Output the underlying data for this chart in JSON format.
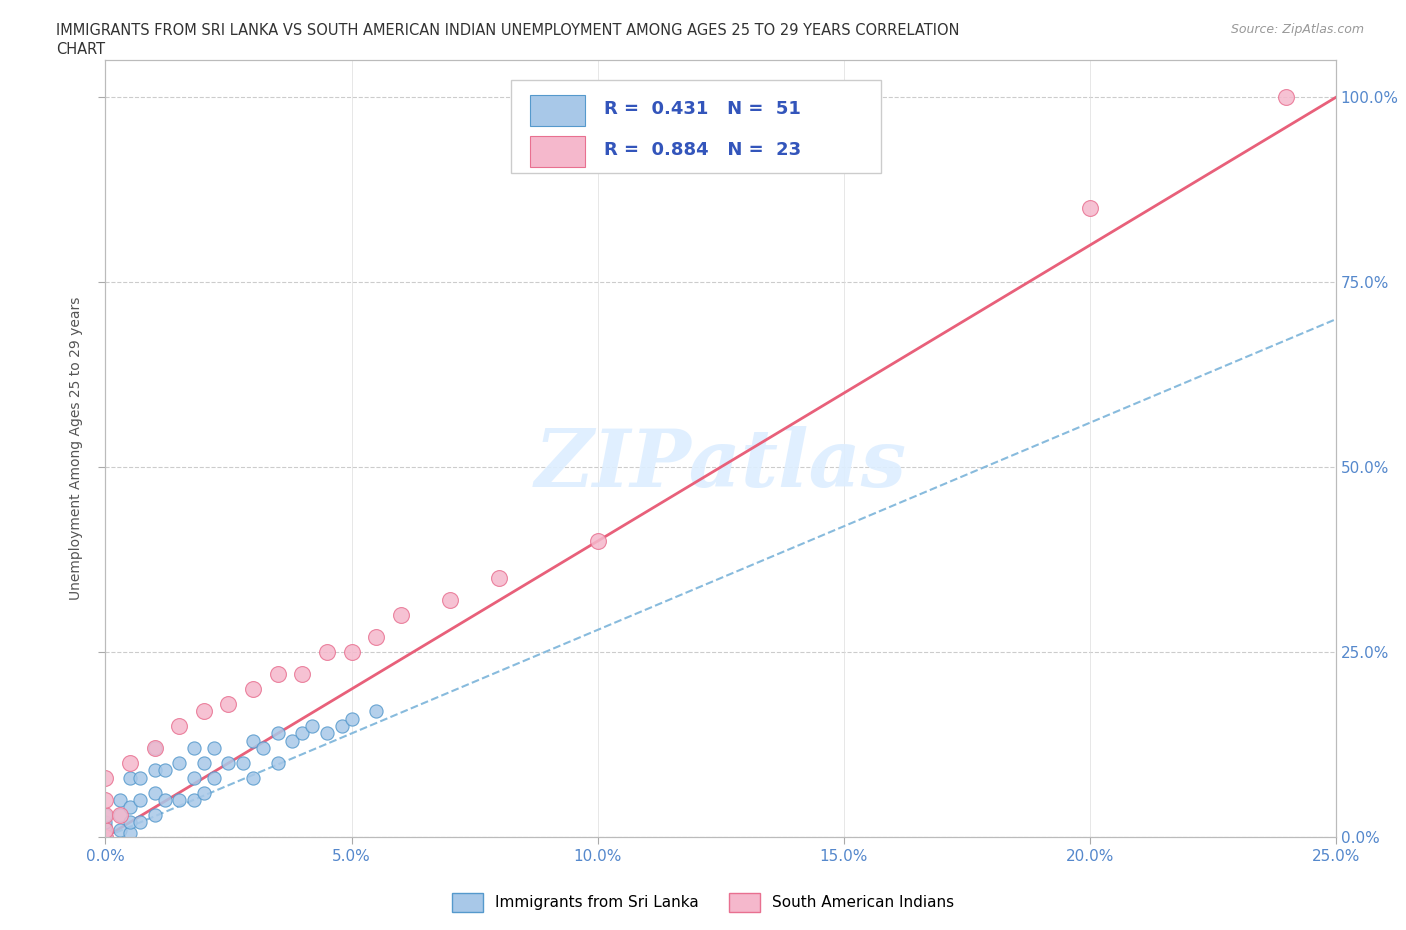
{
  "title_line1": "IMMIGRANTS FROM SRI LANKA VS SOUTH AMERICAN INDIAN UNEMPLOYMENT AMONG AGES 25 TO 29 YEARS CORRELATION",
  "title_line2": "CHART",
  "source_text": "Source: ZipAtlas.com",
  "ylabel": "Unemployment Among Ages 25 to 29 years",
  "x_ticks": [
    "0.0%",
    "5.0%",
    "10.0%",
    "15.0%",
    "20.0%",
    "25.0%"
  ],
  "x_tick_vals": [
    0.0,
    5.0,
    10.0,
    15.0,
    20.0,
    25.0
  ],
  "y_ticks_right": [
    "0.0%",
    "25.0%",
    "50.0%",
    "75.0%",
    "100.0%"
  ],
  "y_tick_vals": [
    0.0,
    25.0,
    50.0,
    75.0,
    100.0
  ],
  "xlim": [
    0.0,
    25.0
  ],
  "ylim": [
    0.0,
    105.0
  ],
  "watermark": "ZIPatlas",
  "sri_lanka_color": "#a8c8e8",
  "sri_lanka_edge": "#5599cc",
  "south_american_color": "#f5b8cc",
  "south_american_edge": "#e87090",
  "trend_sri_lanka_color": "#88bbdd",
  "trend_south_american_color": "#e8607a",
  "sri_lanka_R": 0.431,
  "sri_lanka_N": 51,
  "south_american_R": 0.884,
  "south_american_N": 23,
  "legend_label_1": "Immigrants from Sri Lanka",
  "legend_label_2": "South American Indians",
  "sri_lanka_x": [
    0.0,
    0.0,
    0.0,
    0.0,
    0.0,
    0.0,
    0.0,
    0.0,
    0.0,
    0.0,
    0.0,
    0.0,
    0.3,
    0.3,
    0.3,
    0.5,
    0.5,
    0.5,
    0.5,
    0.7,
    0.7,
    0.7,
    1.0,
    1.0,
    1.0,
    1.0,
    1.2,
    1.2,
    1.5,
    1.5,
    1.8,
    1.8,
    1.8,
    2.0,
    2.0,
    2.2,
    2.2,
    2.5,
    2.8,
    3.0,
    3.0,
    3.2,
    3.5,
    3.5,
    3.8,
    4.0,
    4.2,
    4.5,
    4.8,
    5.0,
    5.5
  ],
  "sri_lanka_y": [
    0.0,
    0.0,
    0.0,
    0.0,
    0.0,
    0.0,
    0.0,
    0.5,
    1.0,
    1.5,
    2.0,
    3.0,
    1.0,
    3.0,
    5.0,
    0.5,
    2.0,
    4.0,
    8.0,
    2.0,
    5.0,
    8.0,
    3.0,
    6.0,
    9.0,
    12.0,
    5.0,
    9.0,
    5.0,
    10.0,
    5.0,
    8.0,
    12.0,
    6.0,
    10.0,
    8.0,
    12.0,
    10.0,
    10.0,
    8.0,
    13.0,
    12.0,
    10.0,
    14.0,
    13.0,
    14.0,
    15.0,
    14.0,
    15.0,
    16.0,
    17.0
  ],
  "south_american_x": [
    0.0,
    0.0,
    0.0,
    0.0,
    0.0,
    0.3,
    0.5,
    1.0,
    1.5,
    2.0,
    2.5,
    3.0,
    3.5,
    4.0,
    4.5,
    5.0,
    5.5,
    6.0,
    7.0,
    8.0,
    10.0,
    20.0,
    24.0
  ],
  "south_american_y": [
    0.0,
    1.0,
    3.0,
    5.0,
    8.0,
    3.0,
    10.0,
    12.0,
    15.0,
    17.0,
    18.0,
    20.0,
    22.0,
    22.0,
    25.0,
    25.0,
    27.0,
    30.0,
    32.0,
    35.0,
    40.0,
    85.0,
    100.0
  ],
  "trend_sa_x0": 0.0,
  "trend_sa_y0": 0.0,
  "trend_sa_x1": 25.0,
  "trend_sa_y1": 100.0,
  "trend_sri_x0": 0.0,
  "trend_sri_y0": 0.0,
  "trend_sri_x1": 25.0,
  "trend_sri_y1": 70.0
}
